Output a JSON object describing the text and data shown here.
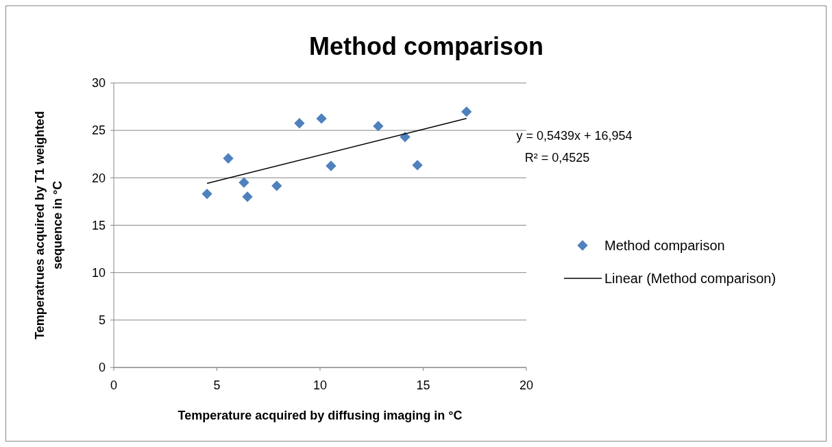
{
  "chart_data": {
    "type": "scatter",
    "title": "Method comparison",
    "xlabel": "Temperature acquired by diffusing imaging in °C",
    "ylabel": "Temperatrues acquired by T1 weighted sequence in °C",
    "xlim": [
      0,
      20
    ],
    "xticks": [
      0,
      5,
      10,
      15,
      20
    ],
    "ylim": [
      0,
      30
    ],
    "yticks": [
      0,
      5,
      10,
      15,
      20,
      25,
      30
    ],
    "grid": "y",
    "legend": "right",
    "marker": "diamond",
    "series": [
      {
        "name": "Method comparison",
        "color": "#4f81bd",
        "x": [
          4.52,
          5.55,
          6.31,
          6.48,
          7.9,
          9.0,
          10.07,
          10.53,
          12.82,
          14.12,
          14.72,
          17.1
        ],
        "values": [
          18.3,
          22.05,
          19.5,
          18.0,
          19.15,
          25.75,
          26.25,
          21.25,
          25.45,
          24.3,
          21.33,
          26.97
        ]
      },
      {
        "name": "Linear (Method comparison)",
        "color": "#000000",
        "type": "line",
        "marker": "none",
        "x": [
          4.52,
          17.1
        ],
        "values": [
          19.41,
          26.26
        ]
      }
    ],
    "annotations": [
      "y = 0,5439x + 16,954",
      "R² = 0,4525"
    ]
  }
}
